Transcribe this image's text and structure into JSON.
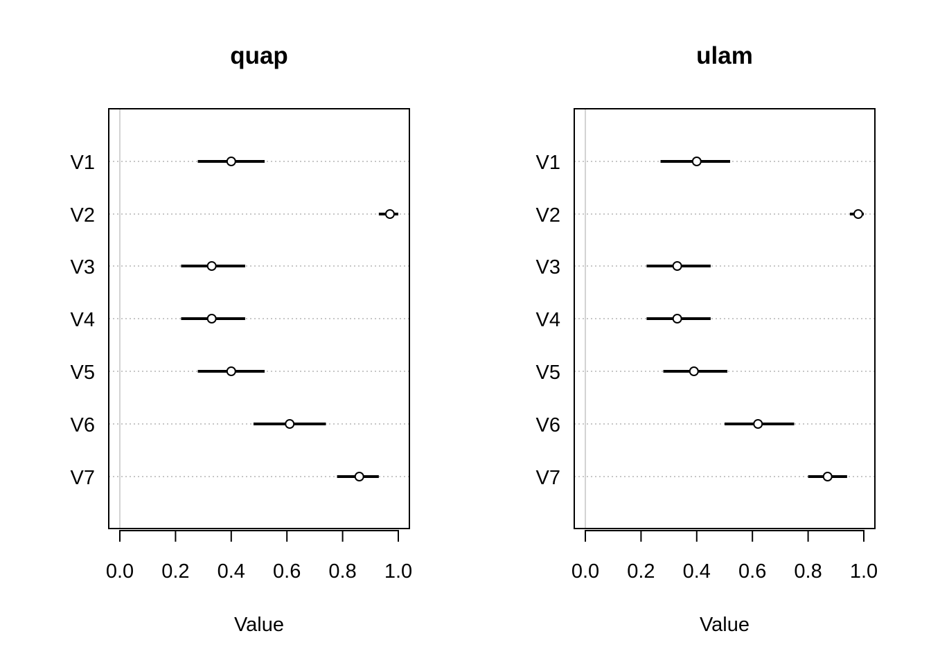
{
  "chart_data": [
    {
      "type": "dotplot-interval",
      "title": "quap",
      "xlabel": "Value",
      "xlim": [
        0.0,
        1.0
      ],
      "xticks": [
        "0.0",
        "0.2",
        "0.4",
        "0.6",
        "0.8",
        "1.0"
      ],
      "grid": "dotted horizontal per variable",
      "zero_line": true,
      "categories": [
        "V1",
        "V2",
        "V3",
        "V4",
        "V5",
        "V6",
        "V7"
      ],
      "mean": [
        0.4,
        0.97,
        0.33,
        0.33,
        0.4,
        0.61,
        0.86
      ],
      "lower": [
        0.28,
        0.93,
        0.22,
        0.22,
        0.28,
        0.48,
        0.78
      ],
      "upper": [
        0.52,
        1.0,
        0.45,
        0.45,
        0.52,
        0.74,
        0.93
      ]
    },
    {
      "type": "dotplot-interval",
      "title": "ulam",
      "xlabel": "Value",
      "xlim": [
        0.0,
        1.0
      ],
      "xticks": [
        "0.0",
        "0.2",
        "0.4",
        "0.6",
        "0.8",
        "1.0"
      ],
      "grid": "dotted horizontal per variable",
      "zero_line": true,
      "categories": [
        "V1",
        "V2",
        "V3",
        "V4",
        "V5",
        "V6",
        "V7"
      ],
      "mean": [
        0.4,
        0.98,
        0.33,
        0.33,
        0.39,
        0.62,
        0.87
      ],
      "lower": [
        0.27,
        0.95,
        0.22,
        0.22,
        0.28,
        0.5,
        0.8
      ],
      "upper": [
        0.52,
        1.0,
        0.45,
        0.45,
        0.51,
        0.75,
        0.94
      ]
    }
  ]
}
